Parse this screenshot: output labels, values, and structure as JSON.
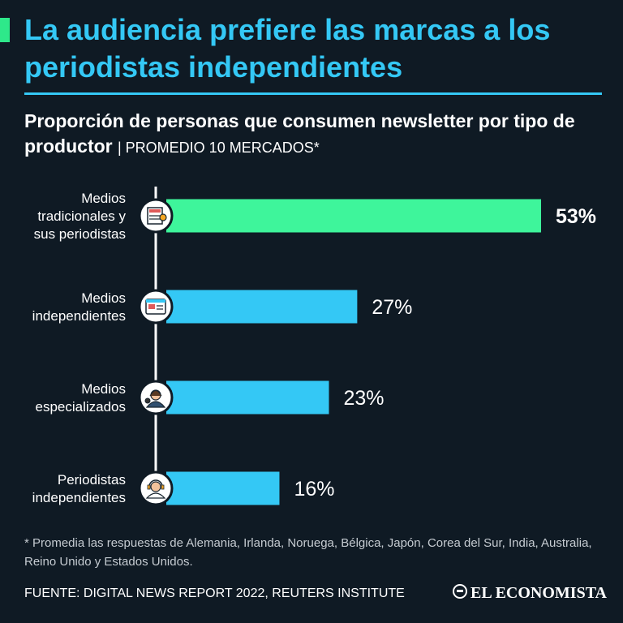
{
  "header": {
    "title": "La audiencia prefiere las marcas a los periodistas independientes"
  },
  "chart_data": {
    "type": "bar",
    "orientation": "horizontal",
    "title": "Proporción de personas que consumen newsletter por tipo de productor",
    "subtitle": "| PROMEDIO 10 MERCADOS*",
    "categories": [
      [
        "Medios",
        "tradicionales y",
        "sus periodistas"
      ],
      [
        "Medios",
        "independientes"
      ],
      [
        "Medios",
        "especializados"
      ],
      [
        "Periodistas",
        "independientes"
      ]
    ],
    "values": [
      53,
      27,
      23,
      16
    ],
    "value_labels": [
      "53%",
      "27%",
      "23%",
      "16%"
    ],
    "icons": [
      "newspaper-icon",
      "news-website-icon",
      "reporter-icon",
      "journalist-headset-icon"
    ],
    "bar_colors": [
      "#3ef59b",
      "#34c8f5",
      "#34c8f5",
      "#34c8f5"
    ],
    "highlight_index": 0,
    "xlim": [
      0,
      53
    ],
    "grid": false,
    "legend": "none"
  },
  "footer": {
    "footnote": "* Promedia las respuestas de Alemania, Irlanda, Noruega, Bélgica, Japón, Corea del Sur, India, Australia, Reino Unido y Estados Unidos.",
    "source": "FUENTE: DIGITAL NEWS REPORT 2022, REUTERS INSTITUTE",
    "brand": "EL ECONOMISTA"
  },
  "colors": {
    "background": "#0f1a24",
    "accent_green": "#2ee88a",
    "accent_blue": "#34c8f5",
    "text": "#ffffff"
  }
}
